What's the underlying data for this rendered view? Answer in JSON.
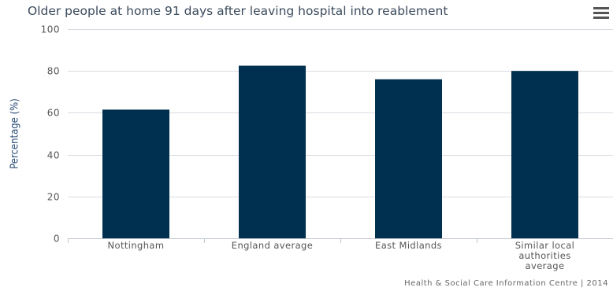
{
  "header": {
    "title": "Older people at home 91 days after leaving hospital into reablement",
    "menu_icon": "hamburger-menu-icon"
  },
  "colors": {
    "bar": "#00304f",
    "grid": "#d8dce2",
    "axis_text": "#555555",
    "title": "#3b4b5d",
    "ylabel": "#2b4e78"
  },
  "chart_data": {
    "type": "bar",
    "title": "Older people at home 91 days after leaving hospital into reablement",
    "xlabel": "",
    "ylabel": "Percentage (%)",
    "categories": [
      [
        "Nottingham"
      ],
      [
        "England average"
      ],
      [
        "East Midlands"
      ],
      [
        "Similar local",
        "authorities",
        "average"
      ]
    ],
    "values": [
      61.5,
      82.5,
      76,
      80
    ],
    "ylim": [
      0,
      100
    ],
    "yticks": [
      0,
      20,
      40,
      60,
      80,
      100
    ],
    "grid": true,
    "legend": "none"
  },
  "credit": "Health & Social Care Information Centre | 2014"
}
